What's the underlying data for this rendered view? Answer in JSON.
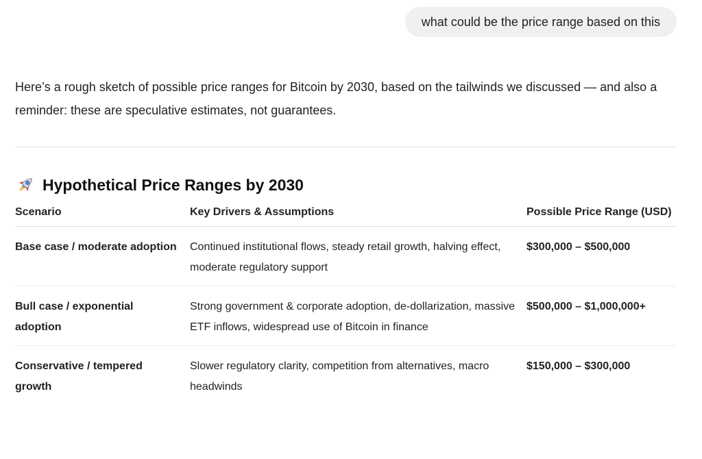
{
  "user_message": "what could be the price range based on this",
  "assistant_reply": {
    "intro": "Here’s a rough sketch of possible price ranges for Bitcoin by 2030, based on the tailwinds we discussed — and also a reminder: these are speculative estimates, not guarantees.",
    "section": {
      "icon": "rocket-icon",
      "title": "Hypothetical Price Ranges by 2030"
    },
    "table": {
      "headers": [
        "Scenario",
        "Key Drivers & Assumptions",
        "Possible Price Range (USD)"
      ],
      "rows": [
        {
          "scenario": "Base case / moderate adoption",
          "drivers": "Continued institutional flows, steady retail growth, halving effect, moderate regulatory support",
          "range": "$300,000 – $500,000"
        },
        {
          "scenario": "Bull case / exponential adoption",
          "drivers": "Strong government & corporate adoption, de-dollarization, massive ETF inflows, widespread use of Bitcoin in finance",
          "range": "$500,000 – $1,000,000+"
        },
        {
          "scenario": "Conservative / tempered growth",
          "drivers": "Slower regulatory clarity, competition from alternatives, macro headwinds",
          "range": "$150,000 – $300,000"
        }
      ]
    }
  }
}
